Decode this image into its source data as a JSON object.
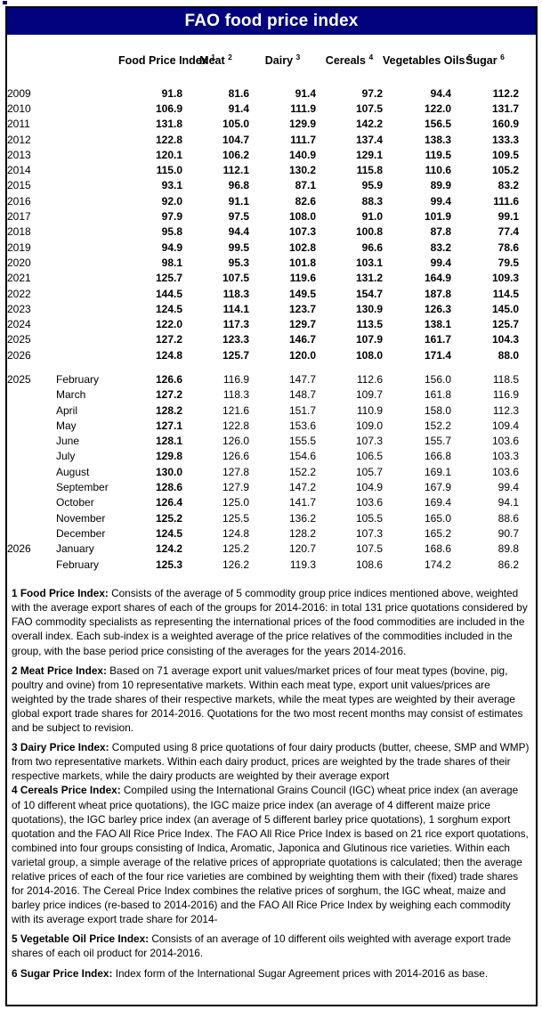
{
  "title": "FAO food price index",
  "colors": {
    "header_bg": "#02027F",
    "header_text": "#FFFFFF",
    "border": "#000000",
    "text": "#000000"
  },
  "table": {
    "columns": [
      {
        "label": "Food Price Index",
        "sup": "1"
      },
      {
        "label": "Meat",
        "sup": "2"
      },
      {
        "label": "Dairy",
        "sup": "3"
      },
      {
        "label": "Cereals",
        "sup": "4"
      },
      {
        "label": "Vegetables Oils",
        "sup": "5"
      },
      {
        "label": "Sugar",
        "sup": "6"
      }
    ],
    "annual_rows": [
      {
        "year": "2009",
        "values": [
          "91.8",
          "81.6",
          "91.4",
          "97.2",
          "94.4",
          "112.2"
        ]
      },
      {
        "year": "2010",
        "values": [
          "106.9",
          "91.4",
          "111.9",
          "107.5",
          "122.0",
          "131.7"
        ]
      },
      {
        "year": "2011",
        "values": [
          "131.8",
          "105.0",
          "129.9",
          "142.2",
          "156.5",
          "160.9"
        ]
      },
      {
        "year": "2012",
        "values": [
          "122.8",
          "104.7",
          "111.7",
          "137.4",
          "138.3",
          "133.3"
        ]
      },
      {
        "year": "2013",
        "values": [
          "120.1",
          "106.2",
          "140.9",
          "129.1",
          "119.5",
          "109.5"
        ]
      },
      {
        "year": "2014",
        "values": [
          "115.0",
          "112.1",
          "130.2",
          "115.8",
          "110.6",
          "105.2"
        ]
      },
      {
        "year": "2015",
        "values": [
          "93.1",
          "96.8",
          "87.1",
          "95.9",
          "89.9",
          "83.2"
        ]
      },
      {
        "year": "2016",
        "values": [
          "92.0",
          "91.1",
          "82.6",
          "88.3",
          "99.4",
          "111.6"
        ]
      },
      {
        "year": "2017",
        "values": [
          "97.9",
          "97.5",
          "108.0",
          "91.0",
          "101.9",
          "99.1"
        ]
      },
      {
        "year": "2018",
        "values": [
          "95.8",
          "94.4",
          "107.3",
          "100.8",
          "87.8",
          "77.4"
        ]
      },
      {
        "year": "2019",
        "values": [
          "94.9",
          "99.5",
          "102.8",
          "96.6",
          "83.2",
          "78.6"
        ]
      },
      {
        "year": "2020",
        "values": [
          "98.1",
          "95.3",
          "101.8",
          "103.1",
          "99.4",
          "79.5"
        ]
      },
      {
        "year": "2021",
        "values": [
          "125.7",
          "107.5",
          "119.6",
          "131.2",
          "164.9",
          "109.3"
        ]
      },
      {
        "year": "2022",
        "values": [
          "144.5",
          "118.3",
          "149.5",
          "154.7",
          "187.8",
          "114.5"
        ]
      },
      {
        "year": "2023",
        "values": [
          "124.5",
          "114.1",
          "123.7",
          "130.9",
          "126.3",
          "145.0"
        ]
      },
      {
        "year": "2024",
        "values": [
          "122.0",
          "117.3",
          "129.7",
          "113.5",
          "138.1",
          "125.7"
        ]
      },
      {
        "year": "2025",
        "values": [
          "127.2",
          "123.3",
          "146.7",
          "107.9",
          "161.7",
          "104.3"
        ]
      },
      {
        "year": "2026",
        "values": [
          "124.8",
          "125.7",
          "120.0",
          "108.0",
          "171.4",
          "88.0"
        ]
      }
    ],
    "monthly_rows": [
      {
        "year": "2025",
        "month": "February",
        "values": [
          "126.6",
          "116.9",
          "147.7",
          "112.6",
          "156.0",
          "118.5"
        ]
      },
      {
        "year": "",
        "month": "March",
        "values": [
          "127.2",
          "118.3",
          "148.7",
          "109.7",
          "161.8",
          "116.9"
        ]
      },
      {
        "year": "",
        "month": "April",
        "values": [
          "128.2",
          "121.6",
          "151.7",
          "110.9",
          "158.0",
          "112.3"
        ]
      },
      {
        "year": "",
        "month": "May",
        "values": [
          "127.1",
          "122.8",
          "153.6",
          "109.0",
          "152.2",
          "109.4"
        ]
      },
      {
        "year": "",
        "month": "June",
        "values": [
          "128.1",
          "126.0",
          "155.5",
          "107.3",
          "155.7",
          "103.6"
        ]
      },
      {
        "year": "",
        "month": "July",
        "values": [
          "129.8",
          "126.6",
          "154.6",
          "106.5",
          "166.8",
          "103.3"
        ]
      },
      {
        "year": "",
        "month": "August",
        "values": [
          "130.0",
          "127.8",
          "152.2",
          "105.7",
          "169.1",
          "103.6"
        ]
      },
      {
        "year": "",
        "month": "September",
        "values": [
          "128.6",
          "127.9",
          "147.2",
          "104.9",
          "167.9",
          "99.4"
        ]
      },
      {
        "year": "",
        "month": "October",
        "values": [
          "126.4",
          "125.0",
          "141.7",
          "103.6",
          "169.4",
          "94.1"
        ]
      },
      {
        "year": "",
        "month": "November",
        "values": [
          "125.2",
          "125.5",
          "136.2",
          "105.5",
          "165.0",
          "88.6"
        ]
      },
      {
        "year": "",
        "month": "December",
        "values": [
          "124.5",
          "124.8",
          "128.2",
          "107.3",
          "165.2",
          "90.7"
        ]
      },
      {
        "year": "2026",
        "month": "January",
        "values": [
          "124.2",
          "125.2",
          "120.7",
          "107.5",
          "168.6",
          "89.8"
        ]
      },
      {
        "year": "",
        "month": "February",
        "values": [
          "125.3",
          "126.2",
          "119.3",
          "108.6",
          "174.2",
          "86.2"
        ]
      }
    ]
  },
  "footnotes": [
    {
      "label": "1 Food Price Index:",
      "text": "Consists of the average of 5 commodity group price indices mentioned above, weighted with the average export shares of each of the groups for 2014-2016: in total 131 price quotations considered by FAO commodity specialists as representing the international prices of the food commodities are included in the overall index. Each sub-index is a weighted average of the price relatives of the commodities included in the group, with the base period price consisting of the averages for the years 2014-2016."
    },
    {
      "label": "2 Meat Price Index:",
      "text": "Based on 71 average export unit values/market prices of four meat types (bovine, pig, poultry and ovine) from 10 representative markets. Within each meat type, export unit values/prices are weighted by the trade shares of their respective markets, while the meat types are weighted by their average global export trade shares for 2014-2016. Quotations for the two most recent months may consist of estimates and be subject to revision."
    },
    {
      "label": "3 Dairy Price Index:",
      "text": "Computed using 8 price quotations of four dairy products (butter, cheese, SMP and WMP) from two representative markets. Within each dairy product, prices are weighted by the trade shares of their respective markets, while the dairy products are weighted by their average export"
    },
    {
      "label": "4 Cereals Price Index:",
      "text": "Compiled using the International Grains Council (IGC) wheat price index (an average of 10 different wheat price quotations), the IGC maize price index (an average of 4 different maize price quotations), the IGC barley price index (an average of 5 different barley price quotations), 1 sorghum export quotation and the FAO All Rice Price Index. The FAO All Rice Price Index is based on 21 rice export quotations, combined into four groups consisting of Indica, Aromatic, Japonica and Glutinous rice varieties. Within each varietal group, a simple average of the relative prices of appropriate quotations is calculated; then the average relative prices of each of the four rice varieties are combined by weighting them with their (fixed) trade shares for 2014-2016. The Cereal Price Index combines the relative prices of sorghum, the IGC wheat, maize and barley price indices (re-based to 2014-2016) and the FAO All Rice Price Index by weighing each commodity with its average export trade share for 2014-"
    },
    {
      "label": "5 Vegetable Oil Price Index:",
      "text": "Consists of an average of 10 different oils weighted with average export trade shares of each oil product for 2014-2016."
    },
    {
      "label": "6 Sugar Price Index:",
      "text": "Index form of the International Sugar Agreement prices with 2014-2016 as base."
    }
  ]
}
